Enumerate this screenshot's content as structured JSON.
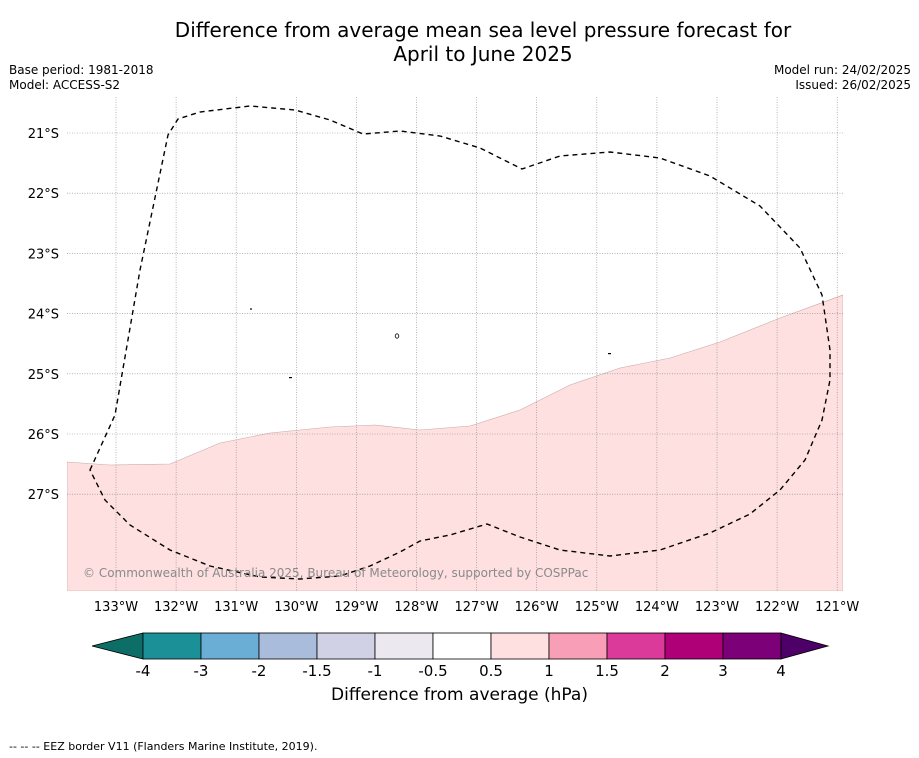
{
  "header": {
    "title_line1": "Difference from average mean sea level pressure forecast for",
    "title_line2": "April to June 2025",
    "base_period": "Base period: 1981-2018",
    "model": "Model: ACCESS-S2",
    "model_run": "Model run: 24/02/2025",
    "issued": "Issued: 26/02/2025"
  },
  "map": {
    "lat_labels": [
      "21°S",
      "22°S",
      "23°S",
      "24°S",
      "25°S",
      "26°S",
      "27°S"
    ],
    "lon_labels": [
      "133°W",
      "132°W",
      "131°W",
      "130°W",
      "129°W",
      "128°W",
      "127°W",
      "126°W",
      "125°W",
      "124°W",
      "123°W",
      "122°W",
      "121°W"
    ],
    "copyright": "© Commonwealth of Australia 2025, Bureau of Meteorology, supported by COSPPac",
    "shaded_color": "#fde0df",
    "shaded_category": "0.5 to 1"
  },
  "colorbar": {
    "colors": [
      "#0d6e67",
      "#1b9097",
      "#6aaed6",
      "#a9bcdc",
      "#d1d1e6",
      "#ebe8ef",
      "#ffffff",
      "#fde0df",
      "#f99eb7",
      "#dc3a9b",
      "#af0078",
      "#7c0077",
      "#4c0068"
    ],
    "tick_labels": [
      "-4",
      "-3",
      "-2",
      "-1.5",
      "-1",
      "-0.5",
      "0.5",
      "1",
      "1.5",
      "2",
      "3",
      "4"
    ],
    "title": "Difference from average (hPa)"
  },
  "footnote": "--  --  -- EEZ border V11 (Flanders Marine Institute, 2019)."
}
